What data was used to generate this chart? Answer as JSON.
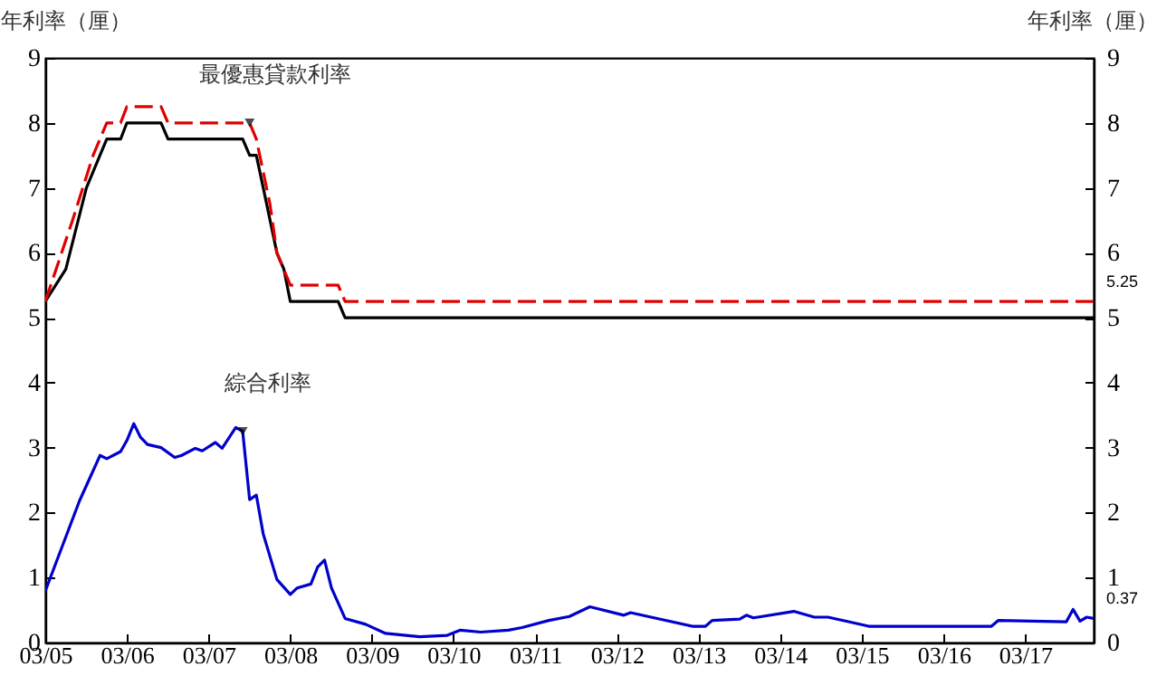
{
  "chart_data": {
    "type": "line",
    "ylabel": "年利率（厘）",
    "y2label": "年利率（厘）",
    "xlim": [
      "2005-03",
      "2018-01"
    ],
    "xticks": [
      {
        "value": "2005-03",
        "label": "03/05"
      },
      {
        "value": "2006-03",
        "label": "03/06"
      },
      {
        "value": "2007-03",
        "label": "03/07"
      },
      {
        "value": "2008-03",
        "label": "03/08"
      },
      {
        "value": "2009-03",
        "label": "03/09"
      },
      {
        "value": "2010-03",
        "label": "03/10"
      },
      {
        "value": "2011-03",
        "label": "03/11"
      },
      {
        "value": "2012-03",
        "label": "03/12"
      },
      {
        "value": "2013-03",
        "label": "03/13"
      },
      {
        "value": "2014-03",
        "label": "03/14"
      },
      {
        "value": "2015-03",
        "label": "03/15"
      },
      {
        "value": "2016-03",
        "label": "03/16"
      },
      {
        "value": "2017-03",
        "label": "03/17"
      }
    ],
    "ylim": [
      0,
      9
    ],
    "yticks": [
      0,
      1,
      2,
      3,
      4,
      5,
      6,
      7,
      8,
      9
    ],
    "y2lim": [
      0,
      9
    ],
    "y2ticks": [
      0,
      1,
      2,
      3,
      4,
      5,
      6,
      7,
      8,
      9
    ],
    "grid": false,
    "marker": "none",
    "series": [
      {
        "color": "#000000",
        "line_style": "solid",
        "x": [
          "2005-03",
          "2005-06",
          "2005-09",
          "2005-12",
          "2006-02",
          "2006-03",
          "2006-08",
          "2006-09",
          "2007-08",
          "2007-09",
          "2007-10",
          "2007-11",
          "2008-01",
          "2008-02",
          "2008-03",
          "2008-10",
          "2008-11",
          "2018-01"
        ],
        "values": [
          5.25,
          5.75,
          7.0,
          7.75,
          7.75,
          8.0,
          8.0,
          7.75,
          7.75,
          7.5,
          7.5,
          7.0,
          6.0,
          5.75,
          5.25,
          5.25,
          5.0,
          5.0
        ]
      },
      {
        "color": "#e00000",
        "line_style": "dashed",
        "x": [
          "2005-03",
          "2005-07",
          "2005-10",
          "2005-12",
          "2006-02",
          "2006-03",
          "2006-08",
          "2006-09",
          "2007-09",
          "2007-10",
          "2007-12",
          "2008-01",
          "2008-03",
          "2008-10",
          "2008-11",
          "2018-01"
        ],
        "values": [
          5.25,
          6.5,
          7.5,
          8.0,
          8.0,
          8.25,
          8.25,
          8.0,
          8.0,
          7.75,
          6.75,
          6.0,
          5.5,
          5.5,
          5.25,
          5.25
        ],
        "value_labels": [
          null,
          null,
          null,
          null,
          null,
          null,
          null,
          null,
          null,
          null,
          null,
          null,
          null,
          null,
          null,
          "5.25"
        ]
      },
      {
        "color": "#0000cc",
        "line_style": "solid",
        "x": [
          "2005-03",
          "2005-08",
          "2005-11",
          "2005-12",
          "2006-02",
          "2006-03",
          "2006-04",
          "2006-05",
          "2006-06",
          "2006-08",
          "2006-10",
          "2006-11",
          "2007-01",
          "2007-02",
          "2007-04",
          "2007-05",
          "2007-07",
          "2007-08",
          "2007-09",
          "2007-10",
          "2007-11",
          "2008-01",
          "2008-03",
          "2008-04",
          "2008-06",
          "2008-07",
          "2008-08",
          "2008-09",
          "2008-11",
          "2009-02",
          "2009-05",
          "2009-10",
          "2010-02",
          "2010-04",
          "2010-07",
          "2010-11",
          "2011-01",
          "2011-05",
          "2011-08",
          "2011-11",
          "2012-04",
          "2012-05",
          "2012-08",
          "2013-02",
          "2013-04",
          "2013-05",
          "2013-09",
          "2013-10",
          "2013-11",
          "2014-05",
          "2014-08",
          "2014-10",
          "2015-01",
          "2015-04",
          "2016-10",
          "2016-11",
          "2017-09",
          "2017-10",
          "2017-11",
          "2017-12",
          "2018-01"
        ],
        "values": [
          0.79,
          2.18,
          2.88,
          2.83,
          2.94,
          3.11,
          3.37,
          3.16,
          3.05,
          3.0,
          2.85,
          2.88,
          2.99,
          2.95,
          3.08,
          2.99,
          3.31,
          3.25,
          2.2,
          2.27,
          1.67,
          0.97,
          0.74,
          0.84,
          0.9,
          1.16,
          1.27,
          0.84,
          0.37,
          0.28,
          0.14,
          0.09,
          0.11,
          0.19,
          0.16,
          0.19,
          0.23,
          0.34,
          0.4,
          0.55,
          0.42,
          0.46,
          0.39,
          0.25,
          0.25,
          0.34,
          0.36,
          0.42,
          0.38,
          0.48,
          0.39,
          0.39,
          0.32,
          0.25,
          0.25,
          0.34,
          0.32,
          0.51,
          0.33,
          0.39,
          0.37
        ],
        "value_labels": [
          null,
          null,
          null,
          null,
          null,
          null,
          null,
          null,
          null,
          null,
          null,
          null,
          null,
          null,
          null,
          null,
          null,
          null,
          null,
          null,
          null,
          null,
          null,
          null,
          null,
          null,
          null,
          null,
          null,
          null,
          null,
          null,
          null,
          null,
          null,
          null,
          null,
          null,
          null,
          null,
          null,
          null,
          null,
          null,
          null,
          null,
          null,
          null,
          null,
          null,
          null,
          null,
          null,
          null,
          null,
          null,
          null,
          null,
          null,
          null,
          "0.37"
        ]
      }
    ],
    "annotations": [
      {
        "text": "最優惠貸款利率",
        "x": "2007-09",
        "y": 8.0
      },
      {
        "text": "綜合利率",
        "x": "2007-08",
        "y": 3.25
      }
    ]
  }
}
